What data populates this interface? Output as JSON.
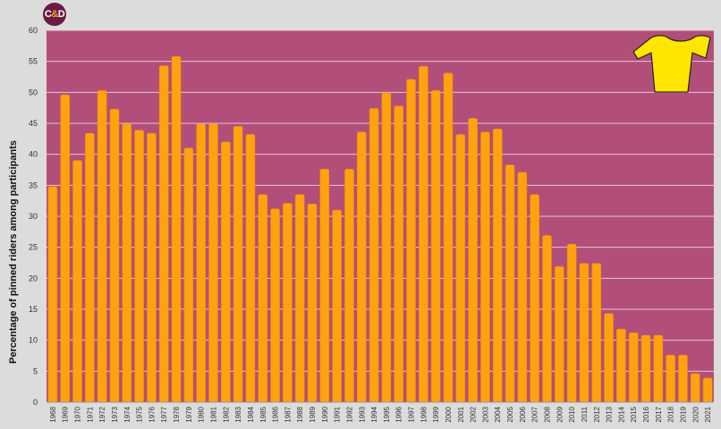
{
  "logo": {
    "c": "C",
    "amp": "&",
    "d": "D"
  },
  "colors": {
    "plot_bg": "#b14f7a",
    "bar": "#ffa20f",
    "bar_edge": "#f28c00",
    "grid": "#e8c3d3",
    "jersey": "#ffe600"
  },
  "icon": "yellow-jersey-icon",
  "chart_data": {
    "type": "bar",
    "title": "",
    "xlabel": "",
    "ylabel": "Percentage of pinned riders among participants",
    "ylim": [
      0,
      60
    ],
    "yticks": [
      0,
      5,
      10,
      15,
      20,
      25,
      30,
      35,
      40,
      45,
      50,
      55,
      60
    ],
    "grid": true,
    "categories": [
      "1968",
      "1969",
      "1970",
      "1971",
      "1972",
      "1973",
      "1974",
      "1975",
      "1976",
      "1977",
      "1978",
      "1979",
      "1980",
      "1981",
      "1982",
      "1983",
      "1984",
      "1985",
      "1986",
      "1987",
      "1988",
      "1989",
      "1990",
      "1991",
      "1992",
      "1993",
      "1994",
      "1995",
      "1996",
      "1997",
      "1998",
      "1999",
      "2000",
      "2001",
      "2002",
      "2003",
      "2004",
      "2005",
      "2006",
      "2007",
      "2008",
      "2009",
      "2010",
      "2011",
      "2012",
      "2013",
      "2014",
      "2015",
      "2016",
      "2017",
      "2018",
      "2019",
      "2020",
      "2021"
    ],
    "values": [
      34.8,
      49.6,
      39.0,
      43.4,
      50.3,
      47.3,
      44.9,
      43.9,
      43.4,
      54.3,
      55.8,
      41.0,
      44.9,
      44.9,
      42.0,
      44.5,
      43.2,
      33.5,
      31.2,
      32.1,
      33.5,
      32.0,
      37.6,
      31.0,
      37.6,
      43.6,
      47.4,
      49.9,
      47.8,
      52.1,
      54.2,
      50.3,
      53.1,
      43.2,
      45.8,
      43.6,
      44.1,
      38.3,
      37.1,
      33.5,
      26.9,
      21.9,
      25.5,
      22.4,
      22.4,
      14.3,
      11.8,
      11.2,
      10.8,
      10.8,
      7.6,
      7.6,
      4.6,
      3.9
    ]
  }
}
